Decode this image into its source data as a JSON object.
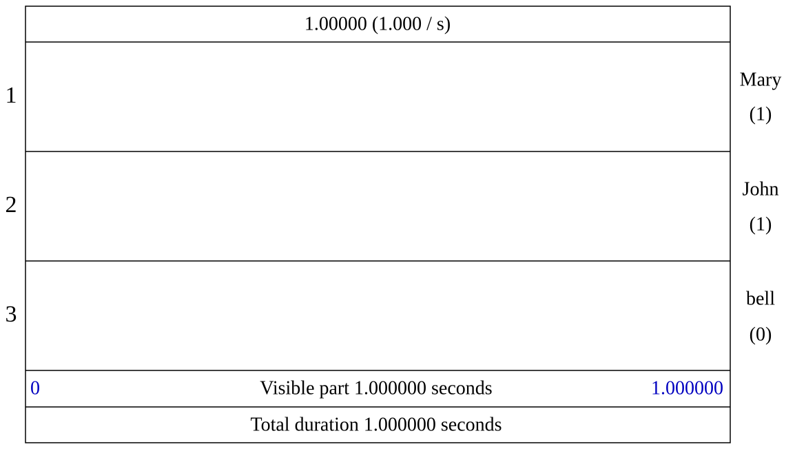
{
  "header": {
    "time": "1.00000 (1.000 / s)"
  },
  "tiers": [
    {
      "number": "1",
      "name": "Mary",
      "count": "(1)"
    },
    {
      "number": "2",
      "name": "John",
      "count": "(1)"
    },
    {
      "number": "3",
      "name": "bell",
      "count": "(0)"
    }
  ],
  "footer": {
    "visible_start": "0",
    "visible_label": "Visible part 1.000000 seconds",
    "visible_end": "1.000000",
    "total": "Total duration 1.000000 seconds"
  }
}
